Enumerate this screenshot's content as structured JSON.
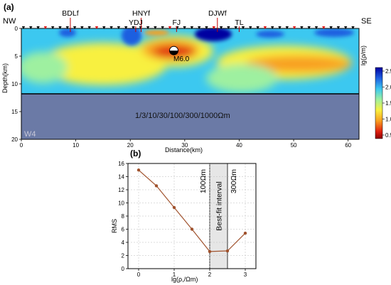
{
  "panel_a": {
    "label": "(a)",
    "left_end": "NW",
    "right_end": "SE",
    "faults": [
      {
        "name": "BDLf",
        "x": 9.0
      },
      {
        "name": "HNYf",
        "x": 22.0
      },
      {
        "name": "YDJ",
        "x": 21.0
      },
      {
        "name": "FJ",
        "x": 28.5
      },
      {
        "name": "DJWf",
        "x": 36.0
      },
      {
        "name": "TL",
        "x": 40.0
      }
    ],
    "station_label": "W4",
    "lower_text": "1/3/10/30/100/300/1000Ωm",
    "event_label": "M6.0",
    "event": {
      "x": 28.0,
      "depth": 4.0
    },
    "xlabel": "Distance(km)",
    "ylabel": "Depth(km)",
    "colorbar_label": "lg(ρ/m)",
    "x_ticks": [
      "0",
      "10",
      "20",
      "30",
      "40",
      "50",
      "60"
    ],
    "y_ticks": [
      "0",
      "5",
      "10",
      "15",
      "20"
    ],
    "colorbar_ticks": [
      "2.5",
      "2.0",
      "1.5",
      "1.0",
      "0.5"
    ],
    "colorbar_colors": [
      "#0000a0",
      "#1f5fe0",
      "#3cc8f0",
      "#9ef0a0",
      "#f8f040",
      "#f8a020",
      "#e02010",
      "#8c0000"
    ]
  },
  "chart_data": {
    "type": "line",
    "panel": "(b)",
    "x": [
      0,
      0.5,
      1.0,
      1.5,
      2.0,
      2.5,
      3.0
    ],
    "y": [
      15.0,
      12.6,
      9.3,
      6.0,
      2.6,
      2.7,
      5.4
    ],
    "xlabel": "lg(ρ,/Ωm)",
    "ylabel": "RMS",
    "xlim": [
      -0.3,
      3.3
    ],
    "ylim": [
      0,
      16
    ],
    "x_ticks": [
      "0",
      "1",
      "2",
      "3"
    ],
    "y_ticks": [
      "0",
      "2",
      "4",
      "6",
      "8",
      "10",
      "12",
      "14",
      "16"
    ],
    "band": {
      "from": 2.0,
      "to": 2.5,
      "label": "Best-fit interval"
    },
    "band_left_label": "100Ωm",
    "band_right_label": "300Ωm",
    "line_color": "#a0522d",
    "grid": true
  }
}
